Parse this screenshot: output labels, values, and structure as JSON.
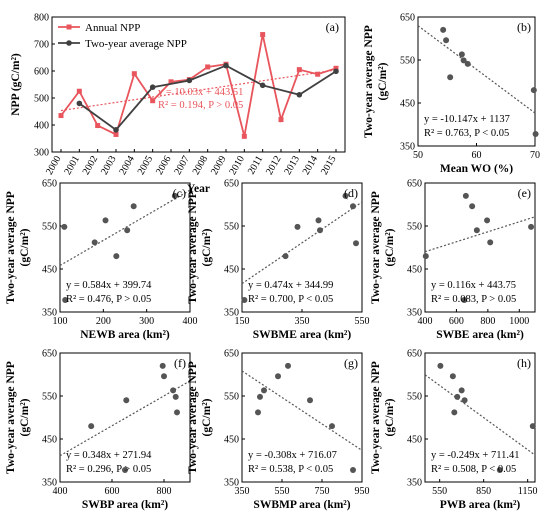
{
  "chart_data": [
    {
      "id": "a",
      "type": "line",
      "panel_label": "(a)",
      "xlabel": "Year",
      "ylabel": "NPP (gC/m²)",
      "x": [
        2000,
        2001,
        2002,
        2003,
        2004,
        2005,
        2006,
        2007,
        2008,
        2009,
        2010,
        2011,
        2012,
        2013,
        2014,
        2015
      ],
      "ylim": [
        300,
        800
      ],
      "yticks": [
        300,
        400,
        500,
        600,
        700,
        800
      ],
      "series": [
        {
          "name": "Annual NPP",
          "color": "#e8555c",
          "x": [
            2000,
            2001,
            2002,
            2003,
            2004,
            2005,
            2006,
            2007,
            2008,
            2009,
            2010,
            2011,
            2012,
            2013,
            2014,
            2015
          ],
          "values": [
            435,
            525,
            398,
            365,
            590,
            490,
            560,
            568,
            615,
            625,
            358,
            735,
            420,
            605,
            588,
            610
          ]
        },
        {
          "name": "Two-year average NPP",
          "color": "#404040",
          "x": [
            2001,
            2003,
            2005,
            2007,
            2009,
            2011,
            2013,
            2015
          ],
          "values": [
            480,
            382,
            540,
            565,
            620,
            547,
            512,
            599
          ]
        }
      ],
      "trend": {
        "slope": 10.03,
        "intercept": 443.51,
        "color": "#e8555c"
      },
      "equation": "y = 10.03x + 443.51",
      "stats": "R² = 0.194, P > 0.05",
      "legend_position": "top-left"
    },
    {
      "id": "b",
      "type": "scatter",
      "panel_label": "(b)",
      "xlabel": "Mean WO (%)",
      "ylabel": "Two-year average NPP",
      "ylabel2": "(gC/m²)",
      "xlim": [
        50,
        70
      ],
      "xticks": [
        50,
        60,
        70
      ],
      "ylim": [
        350,
        650
      ],
      "yticks": [
        350,
        450,
        550,
        650
      ],
      "points": [
        [
          54.3,
          620
        ],
        [
          54.8,
          596
        ],
        [
          55.5,
          510
        ],
        [
          57.5,
          563
        ],
        [
          57.8,
          549
        ],
        [
          58.5,
          541
        ],
        [
          69.8,
          480
        ],
        [
          70.1,
          378
        ]
      ],
      "trend": {
        "slope": -10.147,
        "intercept": 1137
      },
      "equation": "y = -10.147x + 1137",
      "stats": "R² = 0.763, P < 0.05"
    },
    {
      "id": "c",
      "type": "scatter",
      "panel_label": "(c)",
      "xlabel": "NEWB area (km²)",
      "ylabel": "Two-year average NPP",
      "ylabel2": "(gC/m²)",
      "xlim": [
        100,
        400
      ],
      "xticks": [
        100,
        200,
        300,
        400
      ],
      "ylim": [
        350,
        650
      ],
      "yticks": [
        350,
        450,
        550,
        650
      ],
      "points": [
        [
          110,
          548
        ],
        [
          112,
          378
        ],
        [
          180,
          512
        ],
        [
          205,
          563
        ],
        [
          230,
          480
        ],
        [
          255,
          540
        ],
        [
          270,
          596
        ],
        [
          365,
          620
        ]
      ],
      "trend": {
        "slope": 0.584,
        "intercept": 399.74
      },
      "equation": "y = 0.584x + 399.74",
      "stats": "R² = 0.476, P > 0.05"
    },
    {
      "id": "d",
      "type": "scatter",
      "panel_label": "(d)",
      "xlabel": "SWBME area (km²)",
      "ylabel": "Two-year average NPP",
      "ylabel2": "(gC/m²)",
      "xlim": [
        150,
        550
      ],
      "xticks": [
        150,
        350,
        550
      ],
      "ylim": [
        350,
        650
      ],
      "yticks": [
        350,
        450,
        550,
        650
      ],
      "points": [
        [
          158,
          378
        ],
        [
          295,
          480
        ],
        [
          335,
          548
        ],
        [
          405,
          563
        ],
        [
          410,
          540
        ],
        [
          495,
          620
        ],
        [
          520,
          596
        ],
        [
          530,
          510
        ]
      ],
      "trend": {
        "slope": 0.474,
        "intercept": 344.99
      },
      "equation": "y = 0.474x + 344.99",
      "stats": "R² = 0.700, P < 0.05"
    },
    {
      "id": "e",
      "type": "scatter",
      "panel_label": "(e)",
      "xlabel": "SWBE area (km²)",
      "ylabel": "Two-year average NPP",
      "ylabel2": "(gC/m²)",
      "xlim": [
        400,
        1100
      ],
      "xticks": [
        400,
        600,
        800,
        1000
      ],
      "ylim": [
        350,
        650
      ],
      "yticks": [
        350,
        450,
        550,
        650
      ],
      "points": [
        [
          405,
          480
        ],
        [
          650,
          378
        ],
        [
          660,
          620
        ],
        [
          700,
          596
        ],
        [
          730,
          540
        ],
        [
          795,
          563
        ],
        [
          815,
          512
        ],
        [
          1075,
          548
        ]
      ],
      "trend": {
        "slope": 0.116,
        "intercept": 443.75
      },
      "equation": "y = 0.116x + 443.75",
      "stats": "R² = 0.083, P > 0.05"
    },
    {
      "id": "f",
      "type": "scatter",
      "panel_label": "(f)",
      "xlabel": "SWBP area (km²)",
      "ylabel": "Two-year average NPP",
      "ylabel2": "(gC/m²)",
      "xlim": [
        400,
        900
      ],
      "xticks": [
        400,
        600,
        800
      ],
      "ylim": [
        350,
        650
      ],
      "yticks": [
        350,
        450,
        550,
        650
      ],
      "points": [
        [
          520,
          480
        ],
        [
          650,
          378
        ],
        [
          655,
          540
        ],
        [
          795,
          620
        ],
        [
          800,
          596
        ],
        [
          835,
          563
        ],
        [
          845,
          548
        ],
        [
          850,
          512
        ]
      ],
      "trend": {
        "slope": 0.348,
        "intercept": 271.94
      },
      "equation": "y = 0.348x + 271.94",
      "stats": "R² = 0.296, P > 0.05"
    },
    {
      "id": "g",
      "type": "scatter",
      "panel_label": "(g)",
      "xlabel": "SWBMP area (km²)",
      "ylabel": "Two-year average NPP",
      "ylabel2": "(gC/m²)",
      "xlim": [
        350,
        950
      ],
      "xticks": [
        350,
        550,
        750,
        950
      ],
      "ylim": [
        350,
        650
      ],
      "yticks": [
        350,
        450,
        550,
        650
      ],
      "points": [
        [
          430,
          512
        ],
        [
          440,
          548
        ],
        [
          460,
          563
        ],
        [
          530,
          596
        ],
        [
          580,
          620
        ],
        [
          690,
          540
        ],
        [
          800,
          480
        ],
        [
          905,
          378
        ]
      ],
      "trend": {
        "slope": -0.308,
        "intercept": 716.07
      },
      "equation": "y = -0.308x + 716.07",
      "stats": "R² = 0.538, P < 0.05"
    },
    {
      "id": "h",
      "type": "scatter",
      "panel_label": "(h)",
      "xlabel": "PWB area (km²)",
      "ylabel": "Two-year average NPP",
      "ylabel2": "(gC/m²)",
      "xlim": [
        450,
        1200
      ],
      "xticks": [
        550,
        850,
        1150
      ],
      "ylim": [
        350,
        650
      ],
      "yticks": [
        350,
        450,
        550,
        650
      ],
      "points": [
        [
          555,
          620
        ],
        [
          640,
          596
        ],
        [
          650,
          512
        ],
        [
          670,
          548
        ],
        [
          700,
          563
        ],
        [
          720,
          540
        ],
        [
          960,
          378
        ],
        [
          1185,
          480
        ]
      ],
      "trend": {
        "slope": -0.249,
        "intercept": 711.41
      },
      "equation": "y = -0.249x + 711.41",
      "stats": "R² = 0.508, P < 0.05"
    }
  ]
}
